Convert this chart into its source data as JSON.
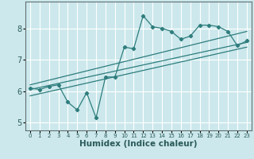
{
  "xlabel": "Humidex (Indice chaleur)",
  "background_color": "#cce8ec",
  "grid_color": "#ffffff",
  "line_color": "#2e7d7d",
  "xlim": [
    -0.5,
    23.5
  ],
  "ylim": [
    4.75,
    8.85
  ],
  "xticks": [
    0,
    1,
    2,
    3,
    4,
    5,
    6,
    7,
    8,
    9,
    10,
    11,
    12,
    13,
    14,
    15,
    16,
    17,
    18,
    19,
    20,
    21,
    22,
    23
  ],
  "yticks": [
    5,
    6,
    7,
    8
  ],
  "data_x": [
    0,
    1,
    2,
    3,
    4,
    5,
    6,
    7,
    8,
    9,
    10,
    11,
    12,
    13,
    14,
    15,
    16,
    17,
    18,
    19,
    20,
    21,
    22,
    23
  ],
  "data_y": [
    6.1,
    6.05,
    6.15,
    6.2,
    5.65,
    5.4,
    5.95,
    5.15,
    6.45,
    6.45,
    7.4,
    7.35,
    8.4,
    8.05,
    8.0,
    7.9,
    7.65,
    7.75,
    8.1,
    8.1,
    8.05,
    7.9,
    7.45,
    7.6
  ],
  "trend1_x": [
    0,
    23
  ],
  "trend1_y": [
    6.05,
    7.55
  ],
  "trend2_x": [
    0,
    23
  ],
  "trend2_y": [
    6.2,
    7.9
  ],
  "trend3_x": [
    0,
    23
  ],
  "trend3_y": [
    5.85,
    7.4
  ],
  "xlabel_fontsize": 7.5,
  "xtick_fontsize": 5.0,
  "ytick_fontsize": 7.0
}
